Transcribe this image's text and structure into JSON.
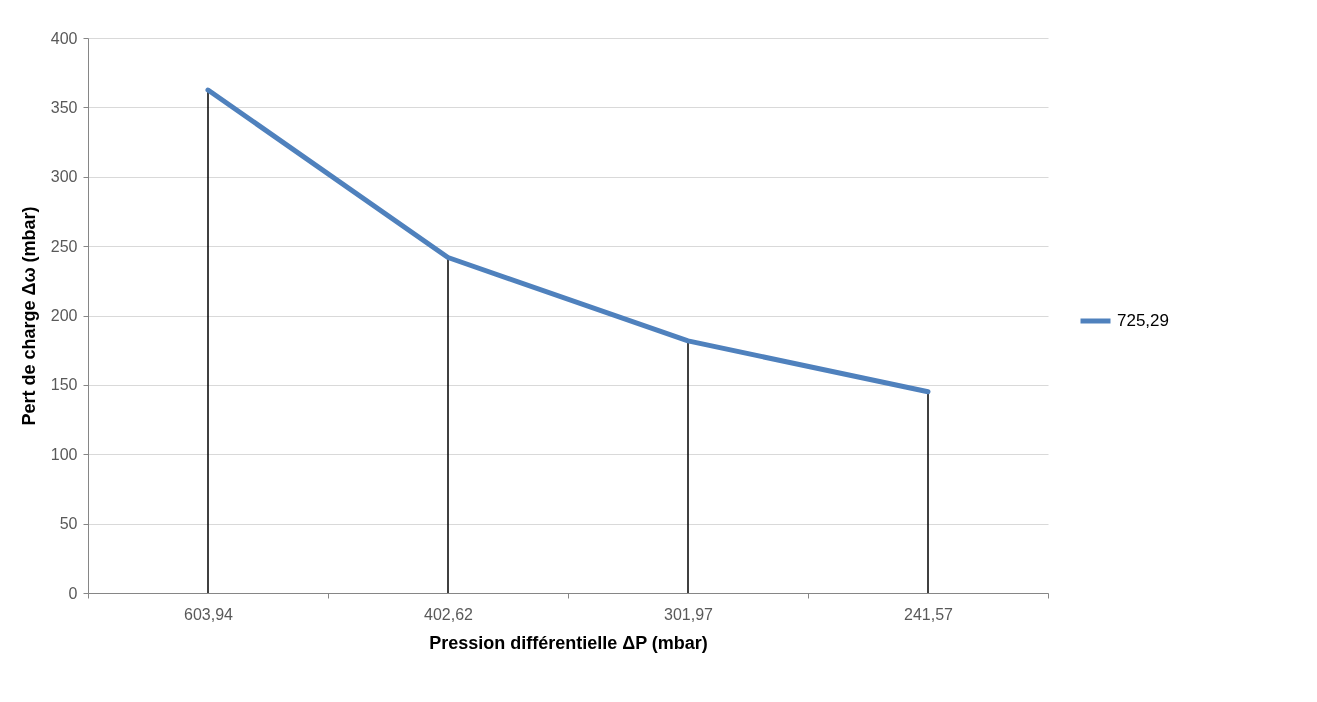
{
  "chart_data": {
    "type": "line",
    "xlabel": "Pression différentielle ΔP (mbar)",
    "ylabel": "Pert de charge Δω (mbar)",
    "categories": [
      "603,94",
      "402,62",
      "301,97",
      "241,57"
    ],
    "series": [
      {
        "type": "bar",
        "color": "#000000",
        "values": [
          362.5,
          241.8,
          181.7,
          145
        ]
      },
      {
        "name": "725,29",
        "color": "#4f81bd",
        "values": [
          362.5,
          241.8,
          181.7,
          145
        ]
      }
    ],
    "ylim": [
      0,
      400
    ],
    "yticks": [
      0,
      50,
      100,
      150,
      200,
      250,
      300,
      350,
      400
    ],
    "grid": "y",
    "legend": "right"
  }
}
